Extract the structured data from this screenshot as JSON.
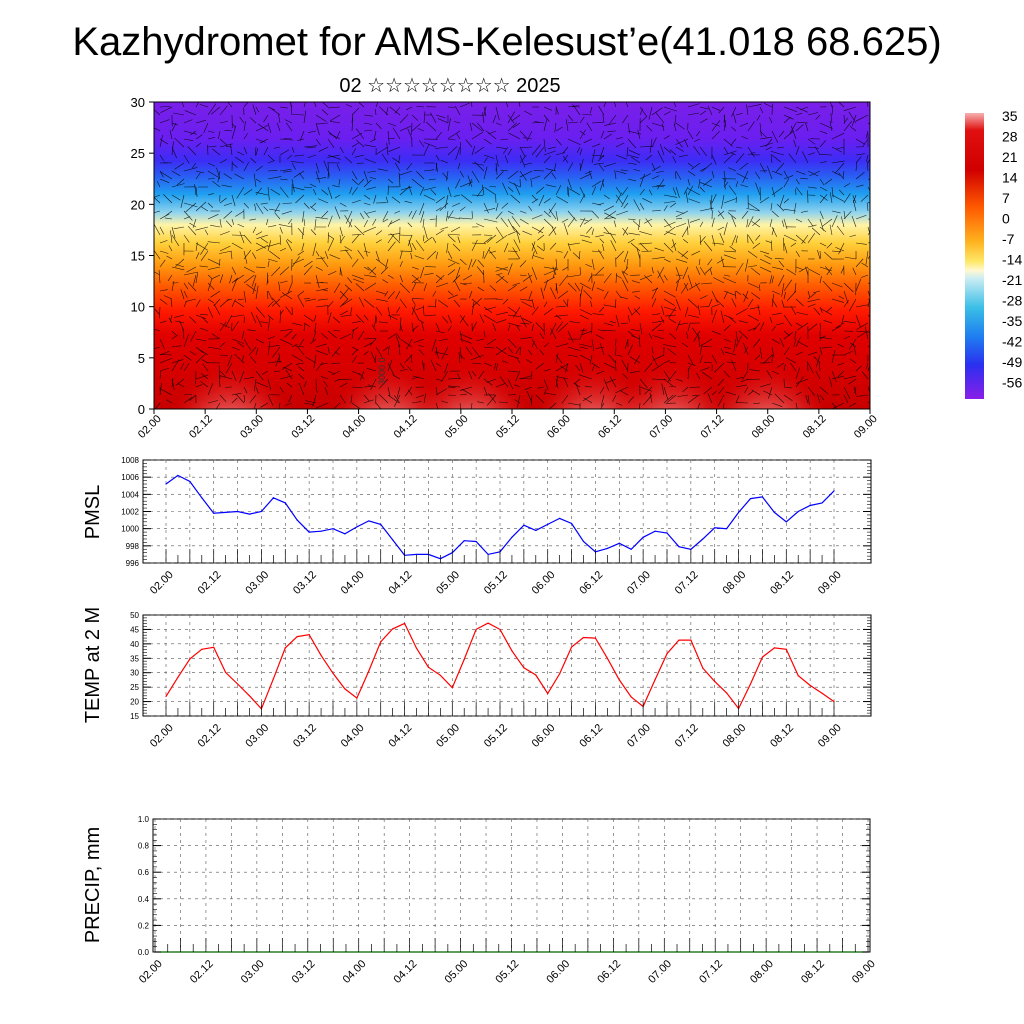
{
  "header": {
    "title": "Kazhydromet for AMS-Kelesust’e(41.018 68.625)",
    "subtitle": "02 ☆☆☆☆☆☆☆☆ 2025"
  },
  "time_labels": [
    "02.00",
    "02.12",
    "03.00",
    "03.12",
    "04.00",
    "04.12",
    "05.00",
    "05.12",
    "06.00",
    "06.12",
    "07.00",
    "07.12",
    "08.00",
    "08.12",
    "09.00"
  ],
  "colors": {
    "pmsl_line": "#0000ff",
    "temp_line": "#ff0000",
    "precip_line": "#006400",
    "grid": "#555555",
    "palette": [
      "#7a1fe8",
      "#3d2cf5",
      "#1f7ff0",
      "#3bbfe6",
      "#b9e3f0",
      "#ffe86a",
      "#ffb31f",
      "#ff6a00",
      "#ff1a00",
      "#d40000",
      "#f08080",
      "#f7b0b0"
    ]
  },
  "chart_data": [
    {
      "type": "heatmap",
      "name": "vertical-profile",
      "ylim": [
        0,
        30
      ],
      "yticks": [
        0,
        5,
        10,
        15,
        20,
        25,
        30
      ],
      "colorbar_labels": [
        "35",
        "28",
        "21",
        "14",
        "7",
        "0",
        "-7",
        "-14",
        "-21",
        "-28",
        "-35",
        "-42",
        "-49",
        "-56"
      ],
      "contour_label": "3000.0",
      "overlay": "wind vectors"
    },
    {
      "type": "line",
      "name": "pmsl",
      "ylabel": "PMSL",
      "ylim": [
        996,
        1008
      ],
      "yticks": [
        996,
        998,
        1000,
        1002,
        1004,
        1006,
        1008
      ],
      "values": [
        1005.2,
        1006.2,
        1005.5,
        1003.6,
        1001.8,
        1001.9,
        1002.0,
        1001.7,
        1002.0,
        1003.6,
        1003.0,
        1001.0,
        999.6,
        999.7,
        1000.0,
        999.4,
        1000.2,
        1000.9,
        1000.5,
        998.7,
        996.9,
        997.0,
        997.0,
        996.5,
        997.2,
        998.6,
        998.5,
        997.0,
        997.3,
        999.0,
        1000.4,
        999.8,
        1000.5,
        1001.2,
        1000.6,
        998.5,
        997.3,
        997.7,
        998.3,
        997.6,
        999.0,
        999.7,
        999.5,
        997.9,
        997.6,
        998.8,
        1000.1,
        1000.0,
        1001.9,
        1003.5,
        1003.7,
        1001.9,
        1000.8,
        1002.0,
        1002.7,
        1003.0,
        1004.4
      ]
    },
    {
      "type": "line",
      "name": "temp-2m",
      "ylabel": "TEMP at 2 M",
      "ylim": [
        15,
        50
      ],
      "yticks": [
        15,
        20,
        25,
        30,
        35,
        40,
        45,
        50
      ],
      "values": [
        21.8,
        28.4,
        34.8,
        38.1,
        38.8,
        30.1,
        26.1,
        22.0,
        17.5,
        27.9,
        38.6,
        42.5,
        43.2,
        36.0,
        29.8,
        24.4,
        21.2,
        30.6,
        40.7,
        45.2,
        47.1,
        38.5,
        31.9,
        29.1,
        24.8,
        34.6,
        45.0,
        47.2,
        45.0,
        37.6,
        31.7,
        29.2,
        22.8,
        29.6,
        38.9,
        42.2,
        42.0,
        35.0,
        27.5,
        21.6,
        18.3,
        27.6,
        36.6,
        41.3,
        41.3,
        31.6,
        27.0,
        23.0,
        17.6,
        26.1,
        35.4,
        38.6,
        38.1,
        29.0,
        25.6,
        22.9,
        20.0
      ]
    },
    {
      "type": "line",
      "name": "precip",
      "ylabel": "PRECIP, mm",
      "ylim": [
        0,
        1
      ],
      "yticks": [
        "0.0",
        "0.2",
        "0.4",
        "0.6",
        "0.8",
        "1.0"
      ],
      "values": [
        0,
        0,
        0,
        0,
        0,
        0,
        0,
        0,
        0,
        0,
        0,
        0,
        0,
        0,
        0,
        0,
        0,
        0,
        0,
        0,
        0,
        0,
        0,
        0,
        0,
        0,
        0,
        0,
        0,
        0,
        0,
        0,
        0,
        0,
        0,
        0,
        0,
        0,
        0,
        0,
        0,
        0,
        0,
        0,
        0,
        0,
        0,
        0,
        0,
        0,
        0,
        0,
        0,
        0,
        0,
        0,
        0
      ]
    }
  ]
}
